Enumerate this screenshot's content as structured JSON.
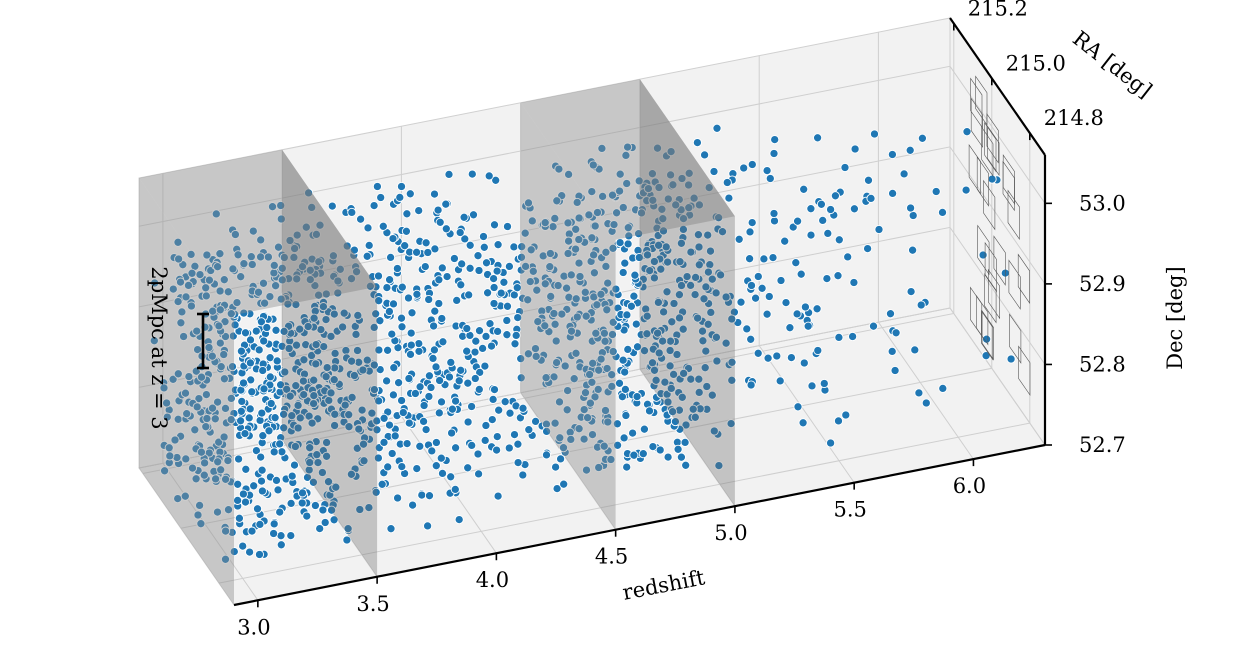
{
  "chart_data": {
    "type": "scatter3d",
    "xlabel": "redshift",
    "ylabel": "RA [deg]",
    "zlabel": "Dec [deg]",
    "xlim": [
      2.9,
      6.3
    ],
    "ylim": [
      214.72,
      215.22
    ],
    "zlim": [
      52.7,
      53.06
    ],
    "x_ticks": [
      "3.0",
      "3.5",
      "4.0",
      "4.5",
      "5.0",
      "5.5",
      "6.0"
    ],
    "y_ticks": [
      "214.8",
      "215.0",
      "215.2"
    ],
    "z_ticks": [
      "52.7",
      "52.8",
      "52.9",
      "53.0"
    ],
    "scale_bar_label": "2pMpc at z = 3",
    "shaded_slabs": [
      {
        "z_min": 2.9,
        "z_max": 3.5
      },
      {
        "z_min": 4.5,
        "z_max": 5.0
      }
    ],
    "series": [
      {
        "color": "#1f77b4",
        "density_bins": [
          {
            "z_min": 2.9,
            "z_max": 3.5,
            "count": 620
          },
          {
            "z_min": 3.5,
            "z_max": 4.0,
            "count": 300
          },
          {
            "z_min": 4.0,
            "z_max": 4.5,
            "count": 220
          },
          {
            "z_min": 4.5,
            "z_max": 5.0,
            "count": 430
          },
          {
            "z_min": 5.0,
            "z_max": 5.5,
            "count": 110
          },
          {
            "z_min": 5.5,
            "z_max": 6.0,
            "count": 55
          },
          {
            "z_min": 6.0,
            "z_max": 6.3,
            "count": 12
          }
        ]
      }
    ],
    "grid": true,
    "pane_color": "#f2f2f2"
  }
}
